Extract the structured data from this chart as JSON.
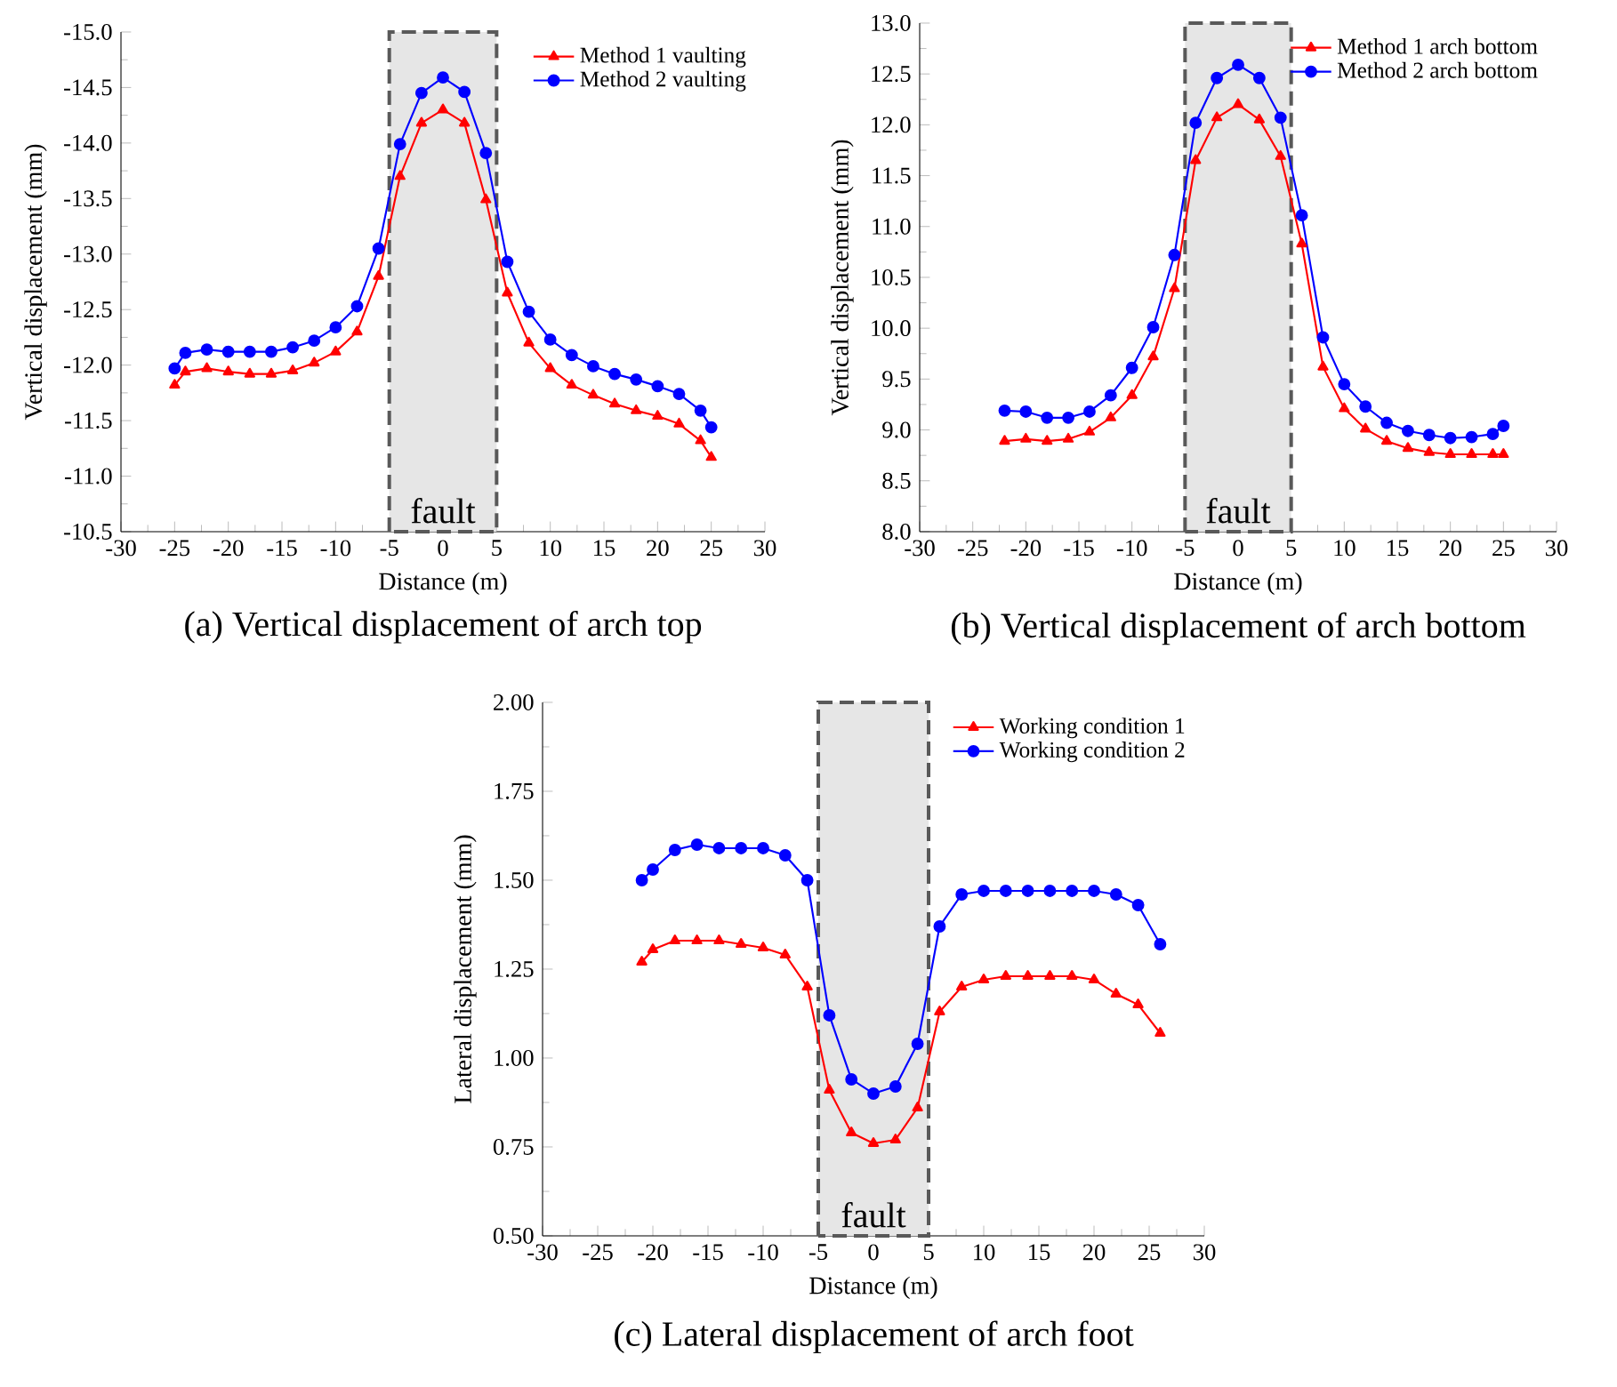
{
  "chart_data": [
    {
      "type": "line",
      "title": "(a) Vertical displacement of arch top",
      "xlabel": "Distance (m)",
      "ylabel": "Vertical displacement (mm)",
      "x": [
        -25,
        -24,
        -22,
        -20,
        -18,
        -16,
        -14,
        -12,
        -10,
        -8,
        -6,
        -4,
        -2,
        0,
        2,
        4,
        6,
        8,
        10,
        12,
        14,
        16,
        18,
        20,
        22,
        24,
        25
      ],
      "series": [
        {
          "name": "Method 1 vaulting",
          "color": "#ff0000",
          "marker": "triangle",
          "values": [
            -11.82,
            -11.94,
            -11.97,
            -11.94,
            -11.92,
            -11.92,
            -11.95,
            -12.02,
            -12.12,
            -12.3,
            -12.8,
            -13.7,
            -14.18,
            -14.3,
            -14.18,
            -13.49,
            -12.65,
            -12.2,
            -11.97,
            -11.82,
            -11.73,
            -11.65,
            -11.59,
            -11.54,
            -11.47,
            -11.32,
            -11.17
          ]
        },
        {
          "name": "Method 2 vaulting",
          "color": "#0000ff",
          "marker": "circle",
          "values": [
            -11.97,
            -12.11,
            -12.14,
            -12.12,
            -12.12,
            -12.12,
            -12.16,
            -12.22,
            -12.34,
            -12.53,
            -13.05,
            -13.99,
            -14.45,
            -14.59,
            -14.46,
            -13.91,
            -12.93,
            -12.48,
            -12.23,
            -12.09,
            -11.99,
            -11.92,
            -11.87,
            -11.81,
            -11.74,
            -11.59,
            -11.44
          ]
        }
      ],
      "xlim": [
        -30,
        30
      ],
      "xticks": [
        -30,
        -25,
        -20,
        -15,
        -10,
        -5,
        0,
        5,
        10,
        15,
        20,
        25,
        30
      ],
      "ylim": [
        -10.5,
        -15.0
      ],
      "yticks": [
        {
          "value": -15,
          "label": "-15.0"
        },
        {
          "value": -14.5,
          "label": "-14.5"
        },
        {
          "value": -14,
          "label": "-14.0"
        },
        {
          "value": -13.5,
          "label": "-13.5"
        },
        {
          "value": -13,
          "label": "-13.0"
        },
        {
          "value": -12.5,
          "label": "-12.5"
        },
        {
          "value": -12,
          "label": "-12.0"
        },
        {
          "value": -11.5,
          "label": "-11.5"
        },
        {
          "value": -11,
          "label": "-11.0"
        },
        {
          "value": -10.5,
          "label": "-10.5"
        }
      ],
      "bands": [
        {
          "axis": "x",
          "from": -5,
          "to": 5,
          "label": "fault",
          "color": "#e6e6e6"
        }
      ],
      "legend": "top right",
      "line_style": "solid"
    },
    {
      "type": "line",
      "title": "(b) Vertical displacement of arch bottom",
      "xlabel": "Distance (m)",
      "ylabel": "Vertical displacement (mm)",
      "x": [
        -22,
        -20,
        -18,
        -16,
        -14,
        -12,
        -10,
        -8,
        -6,
        -4,
        -2,
        0,
        2,
        4,
        6,
        8,
        10,
        12,
        14,
        16,
        18,
        20,
        22,
        24,
        25
      ],
      "series": [
        {
          "name": "Method 1 arch bottom",
          "color": "#ff0000",
          "marker": "triangle",
          "values": [
            8.89,
            8.91,
            8.89,
            8.91,
            8.98,
            9.12,
            9.34,
            9.72,
            10.39,
            11.65,
            12.07,
            12.2,
            12.05,
            11.69,
            10.83,
            9.62,
            9.21,
            9.01,
            8.89,
            8.82,
            8.78,
            8.76,
            8.76,
            8.76,
            8.76
          ]
        },
        {
          "name": "Method 2 arch bottom",
          "color": "#0000ff",
          "marker": "circle",
          "values": [
            9.19,
            9.18,
            9.12,
            9.12,
            9.18,
            9.34,
            9.61,
            10.01,
            10.72,
            12.02,
            12.46,
            12.59,
            12.46,
            12.07,
            11.11,
            9.91,
            9.45,
            9.23,
            9.07,
            8.99,
            8.95,
            8.92,
            8.93,
            8.96,
            9.04
          ]
        }
      ],
      "xlim": [
        -30,
        30
      ],
      "xticks": [
        -30,
        -25,
        -20,
        -15,
        -10,
        -5,
        0,
        5,
        10,
        15,
        20,
        25,
        30
      ],
      "ylim": [
        8.0,
        13.0
      ],
      "yticks": [
        {
          "value": 8,
          "label": "8.0"
        },
        8.5,
        {
          "value": 9,
          "label": "9.0"
        },
        9.5,
        {
          "value": 10,
          "label": "10.0"
        },
        10.5,
        {
          "value": 11,
          "label": "11.0"
        },
        11.5,
        {
          "value": 12,
          "label": "12.0"
        },
        12.5,
        {
          "value": 13,
          "label": "13.0"
        }
      ],
      "bands": [
        {
          "axis": "x",
          "from": -5,
          "to": 5,
          "label": "fault",
          "color": "#e6e6e6"
        }
      ],
      "legend": "top right",
      "line_style": "solid"
    },
    {
      "type": "line",
      "title": "(c) Lateral displacement of arch foot",
      "xlabel": "Distance (m)",
      "ylabel": "Lateral displacement (mm)",
      "x": [
        -21,
        -20,
        -18,
        -16,
        -14,
        -12,
        -10,
        -8,
        -6,
        -4,
        -2,
        0,
        2,
        4,
        6,
        8,
        10,
        12,
        14,
        16,
        18,
        20,
        22,
        24,
        26
      ],
      "series": [
        {
          "name": "Working condition 1",
          "color": "#ff0000",
          "marker": "triangle",
          "values": [
            1.27,
            1.305,
            1.33,
            1.33,
            1.33,
            1.32,
            1.31,
            1.29,
            1.2,
            0.91,
            0.79,
            0.76,
            0.77,
            0.86,
            1.13,
            1.2,
            1.22,
            1.23,
            1.23,
            1.23,
            1.23,
            1.22,
            1.18,
            1.15,
            1.07
          ]
        },
        {
          "name": "Working condition 2",
          "color": "#0000ff",
          "marker": "circle",
          "values": [
            1.5,
            1.53,
            1.585,
            1.6,
            1.59,
            1.59,
            1.59,
            1.57,
            1.5,
            1.12,
            0.94,
            0.9,
            0.92,
            1.04,
            1.37,
            1.46,
            1.47,
            1.47,
            1.47,
            1.47,
            1.47,
            1.47,
            1.46,
            1.43,
            1.32
          ]
        }
      ],
      "xlim": [
        -30,
        30
      ],
      "xticks": [
        -30,
        -25,
        -20,
        -15,
        -10,
        -5,
        0,
        5,
        10,
        15,
        20,
        25,
        30
      ],
      "ylim": [
        0.5,
        2.0
      ],
      "yticks": [
        {
          "value": 0.5,
          "label": "0.50"
        },
        {
          "value": 0.75,
          "label": "0.75"
        },
        {
          "value": 1,
          "label": "1.00"
        },
        {
          "value": 1.25,
          "label": "1.25"
        },
        {
          "value": 1.5,
          "label": "1.50"
        },
        {
          "value": 1.75,
          "label": "1.75"
        },
        {
          "value": 2,
          "label": "2.00"
        }
      ],
      "bands": [
        {
          "axis": "x",
          "from": -5,
          "to": 5,
          "label": "fault",
          "color": "#e6e6e6"
        }
      ],
      "legend": "top right",
      "line_style": "solid"
    }
  ]
}
